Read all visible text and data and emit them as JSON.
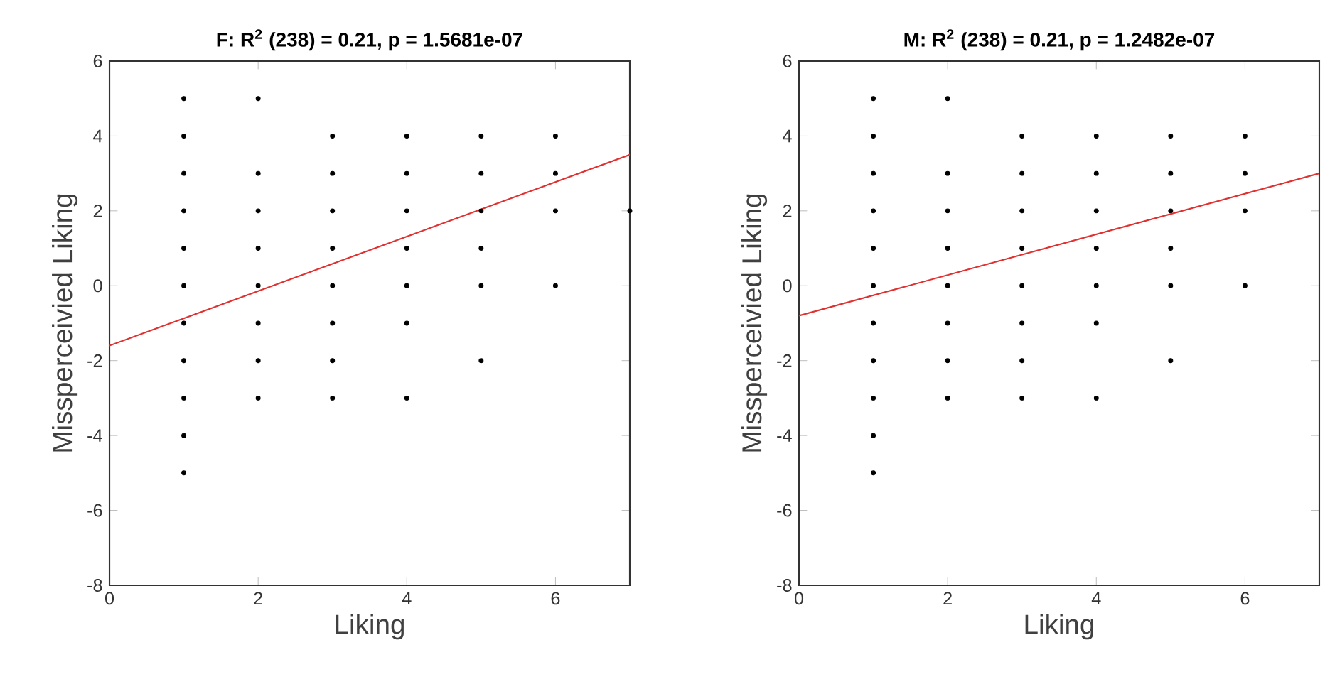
{
  "chart_data": [
    {
      "type": "scatter",
      "title": "**F: R$^{2}$ (238) = 0.21, p = 1.5681e-07**",
      "xlabel": "Liking",
      "ylabel": "Missperceivied Liking",
      "xlim": [
        0,
        7
      ],
      "ylim": [
        -8,
        6
      ],
      "xticks": [
        0,
        2,
        4,
        6
      ],
      "yticks": [
        -8,
        -6,
        -4,
        -2,
        0,
        2,
        4,
        6
      ],
      "series": [
        {
          "marker": "circle",
          "color": "#000000",
          "x": [
            1,
            1,
            1,
            1,
            1,
            1,
            1,
            1,
            1,
            1,
            1,
            2,
            2,
            2,
            2,
            2,
            2,
            2,
            2,
            3,
            3,
            3,
            3,
            3,
            3,
            3,
            3,
            4,
            4,
            4,
            4,
            4,
            4,
            4,
            5,
            5,
            5,
            5,
            5,
            5,
            6,
            6,
            6,
            6,
            7
          ],
          "values": [
            5,
            4,
            3,
            2,
            1,
            0,
            -1,
            -2,
            -3,
            -4,
            -5,
            5,
            3,
            2,
            1,
            0,
            -1,
            -2,
            -3,
            4,
            3,
            2,
            1,
            0,
            -1,
            -2,
            -3,
            4,
            3,
            2,
            1,
            0,
            -1,
            -3,
            4,
            3,
            2,
            1,
            0,
            -2,
            4,
            3,
            2,
            0,
            2
          ]
        },
        {
          "type": "line",
          "marker": "none",
          "color": "#e03030",
          "x": [
            0,
            7
          ],
          "values": [
            -1.6,
            3.5
          ]
        }
      ]
    },
    {
      "type": "scatter",
      "title": "**M: R$^{2}$ (238) = 0.21, p = 1.2482e-07**",
      "xlabel": "Liking",
      "ylabel": "Missperceivied Liking",
      "xlim": [
        0,
        7
      ],
      "ylim": [
        -8,
        6
      ],
      "xticks": [
        0,
        2,
        4,
        6
      ],
      "yticks": [
        -8,
        -6,
        -4,
        -2,
        0,
        2,
        4,
        6
      ],
      "series": [
        {
          "marker": "circle",
          "color": "#000000",
          "x": [
            1,
            1,
            1,
            1,
            1,
            1,
            1,
            1,
            1,
            1,
            1,
            2,
            2,
            2,
            2,
            2,
            2,
            2,
            2,
            3,
            3,
            3,
            3,
            3,
            3,
            3,
            3,
            4,
            4,
            4,
            4,
            4,
            4,
            4,
            5,
            5,
            5,
            5,
            5,
            5,
            6,
            6,
            6,
            6
          ],
          "values": [
            5,
            4,
            3,
            2,
            1,
            0,
            -1,
            -2,
            -3,
            -4,
            -5,
            5,
            3,
            2,
            1,
            0,
            -1,
            -2,
            -3,
            4,
            3,
            2,
            1,
            0,
            -1,
            -2,
            -3,
            4,
            3,
            2,
            1,
            0,
            -1,
            -3,
            4,
            3,
            2,
            1,
            0,
            -2,
            4,
            3,
            2,
            0
          ]
        },
        {
          "type": "line",
          "marker": "none",
          "color": "#e03030",
          "x": [
            0,
            7
          ],
          "values": [
            -0.8,
            3.0
          ]
        }
      ]
    }
  ]
}
